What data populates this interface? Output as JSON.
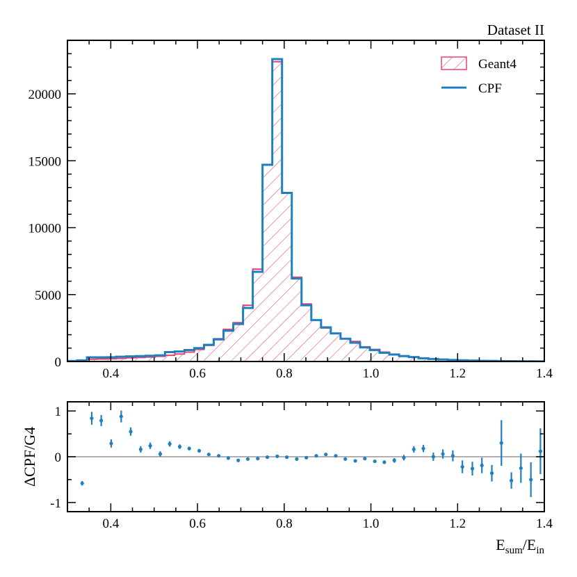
{
  "chart_data": [
    {
      "type": "histogram",
      "title": "Dataset II",
      "xlabel": "",
      "ylabel": "",
      "xlim": [
        0.3,
        1.4
      ],
      "ylim": [
        0,
        24000
      ],
      "xticks": [
        "0.4",
        "0.6",
        "0.8",
        "1.0",
        "1.2",
        "1.4"
      ],
      "yticks": [
        "0",
        "5000",
        "10000",
        "15000",
        "20000"
      ],
      "bin_edges": [
        0.3,
        0.3225,
        0.345,
        0.3675,
        0.39,
        0.4125,
        0.435,
        0.4575,
        0.48,
        0.5025,
        0.525,
        0.5475,
        0.57,
        0.5925,
        0.615,
        0.6375,
        0.66,
        0.6825,
        0.705,
        0.7275,
        0.75,
        0.7725,
        0.795,
        0.8175,
        0.84,
        0.8625,
        0.885,
        0.9075,
        0.93,
        0.9525,
        0.975,
        0.9975,
        1.02,
        1.0425,
        1.065,
        1.0875,
        1.11,
        1.1325,
        1.155,
        1.1775,
        1.2,
        1.2225,
        1.245,
        1.2675,
        1.29,
        1.3125,
        1.335,
        1.3575,
        1.38,
        1.4025
      ],
      "legend": [
        {
          "label": "Geant4",
          "style": "hatched"
        },
        {
          "label": "CPF",
          "style": "line"
        }
      ],
      "series": [
        {
          "name": "Geant4",
          "color": "#e8436a",
          "values": [
            40,
            80,
            170,
            180,
            200,
            230,
            270,
            300,
            330,
            380,
            460,
            560,
            700,
            900,
            1200,
            1700,
            2400,
            2900,
            4200,
            6900,
            14700,
            22400,
            12600,
            6300,
            4300,
            3100,
            2500,
            2100,
            1700,
            1500,
            1100,
            900,
            700,
            550,
            420,
            330,
            250,
            190,
            150,
            120,
            90,
            70,
            55,
            45,
            35,
            28,
            22,
            18,
            15
          ]
        },
        {
          "name": "CPF",
          "color": "#1f7fc0",
          "values": [
            40,
            80,
            310,
            310,
            320,
            360,
            380,
            400,
            430,
            460,
            700,
            750,
            860,
            1000,
            1250,
            1650,
            2300,
            2800,
            4000,
            6700,
            14700,
            22600,
            12600,
            6200,
            4200,
            3100,
            2550,
            2100,
            1700,
            1400,
            1050,
            850,
            650,
            520,
            400,
            330,
            240,
            190,
            150,
            120,
            90,
            70,
            55,
            45,
            35,
            28,
            22,
            18,
            15
          ]
        }
      ]
    },
    {
      "type": "scatter",
      "title": "",
      "xlabel": "E_sum/E_in",
      "xlabel_main": "E",
      "xlabel_sub1": "sum",
      "xlabel_div": "/E",
      "xlabel_sub2": "in",
      "ylabel": "ΔCPF/G4",
      "xlim": [
        0.3,
        1.4
      ],
      "ylim": [
        -1.2,
        1.2
      ],
      "xticks": [
        "0.4",
        "0.6",
        "0.8",
        "1.0",
        "1.2",
        "1.4"
      ],
      "yticks": [
        "-1",
        "0",
        "1"
      ],
      "reference_line": 0,
      "color": "#1f7fc0",
      "points": [
        {
          "x": 0.334,
          "y": -0.58,
          "err": 0.05
        },
        {
          "x": 0.356,
          "y": 0.84,
          "err": 0.14
        },
        {
          "x": 0.378,
          "y": 0.79,
          "err": 0.12
        },
        {
          "x": 0.401,
          "y": 0.29,
          "err": 0.09
        },
        {
          "x": 0.424,
          "y": 0.88,
          "err": 0.13
        },
        {
          "x": 0.446,
          "y": 0.55,
          "err": 0.09
        },
        {
          "x": 0.469,
          "y": 0.16,
          "err": 0.07
        },
        {
          "x": 0.491,
          "y": 0.24,
          "err": 0.07
        },
        {
          "x": 0.514,
          "y": 0.06,
          "err": 0.06
        },
        {
          "x": 0.536,
          "y": 0.28,
          "err": 0.06
        },
        {
          "x": 0.559,
          "y": 0.22,
          "err": 0.05
        },
        {
          "x": 0.581,
          "y": 0.18,
          "err": 0.04
        },
        {
          "x": 0.604,
          "y": 0.13,
          "err": 0.04
        },
        {
          "x": 0.626,
          "y": 0.05,
          "err": 0.03
        },
        {
          "x": 0.649,
          "y": 0.02,
          "err": 0.02
        },
        {
          "x": 0.671,
          "y": -0.03,
          "err": 0.02
        },
        {
          "x": 0.694,
          "y": -0.08,
          "err": 0.02
        },
        {
          "x": 0.716,
          "y": -0.05,
          "err": 0.02
        },
        {
          "x": 0.739,
          "y": -0.04,
          "err": 0.01
        },
        {
          "x": 0.761,
          "y": -0.01,
          "err": 0.01
        },
        {
          "x": 0.784,
          "y": 0.01,
          "err": 0.01
        },
        {
          "x": 0.806,
          "y": -0.01,
          "err": 0.01
        },
        {
          "x": 0.829,
          "y": -0.05,
          "err": 0.01
        },
        {
          "x": 0.851,
          "y": -0.02,
          "err": 0.01
        },
        {
          "x": 0.874,
          "y": 0.02,
          "err": 0.01
        },
        {
          "x": 0.896,
          "y": 0.05,
          "err": 0.02
        },
        {
          "x": 0.919,
          "y": 0.02,
          "err": 0.02
        },
        {
          "x": 0.941,
          "y": -0.05,
          "err": 0.02
        },
        {
          "x": 0.964,
          "y": -0.09,
          "err": 0.02
        },
        {
          "x": 0.986,
          "y": -0.04,
          "err": 0.03
        },
        {
          "x": 1.009,
          "y": -0.1,
          "err": 0.03
        },
        {
          "x": 1.031,
          "y": -0.12,
          "err": 0.04
        },
        {
          "x": 1.054,
          "y": -0.08,
          "err": 0.05
        },
        {
          "x": 1.076,
          "y": -0.02,
          "err": 0.06
        },
        {
          "x": 1.099,
          "y": 0.16,
          "err": 0.07
        },
        {
          "x": 1.121,
          "y": 0.18,
          "err": 0.08
        },
        {
          "x": 1.144,
          "y": 0.0,
          "err": 0.09
        },
        {
          "x": 1.166,
          "y": 0.06,
          "err": 0.1
        },
        {
          "x": 1.189,
          "y": 0.02,
          "err": 0.12
        },
        {
          "x": 1.211,
          "y": -0.22,
          "err": 0.14
        },
        {
          "x": 1.234,
          "y": -0.26,
          "err": 0.15
        },
        {
          "x": 1.256,
          "y": -0.19,
          "err": 0.17
        },
        {
          "x": 1.279,
          "y": -0.36,
          "err": 0.18
        },
        {
          "x": 1.301,
          "y": 0.3,
          "err": 0.5
        },
        {
          "x": 1.324,
          "y": -0.52,
          "err": 0.18
        },
        {
          "x": 1.346,
          "y": -0.25,
          "err": 0.32
        },
        {
          "x": 1.369,
          "y": -0.5,
          "err": 0.38
        },
        {
          "x": 1.391,
          "y": 0.12,
          "err": 0.5
        }
      ]
    }
  ]
}
